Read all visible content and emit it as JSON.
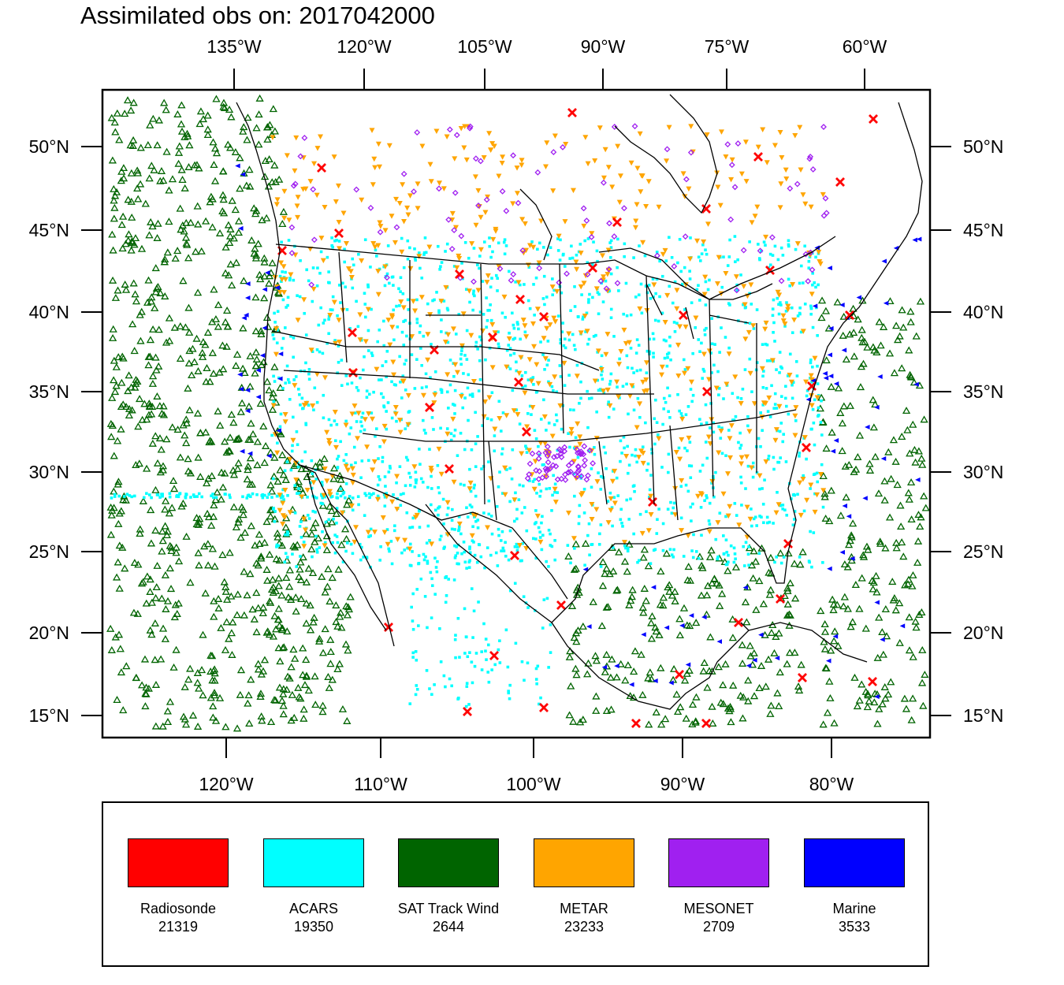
{
  "title": "Assimilated obs on: 2017042000",
  "top_axis_labels": [
    "135°W",
    "120°W",
    "105°W",
    "90°W",
    "75°W",
    "60°W"
  ],
  "bottom_axis_labels": [
    "120°W",
    "110°W",
    "100°W",
    "90°W",
    "80°W"
  ],
  "lat_labels": [
    "50°N",
    "45°N",
    "40°N",
    "35°N",
    "30°N",
    "25°N",
    "20°N",
    "15°N"
  ],
  "legend": [
    {
      "name": "Radiosonde",
      "count": "21319",
      "color": "#ff0000"
    },
    {
      "name": "ACARS",
      "count": "19350",
      "color": "#00ffff"
    },
    {
      "name": "SAT Track Wind",
      "count": "2644",
      "color": "#006400"
    },
    {
      "name": "METAR",
      "count": "23233",
      "color": "#ffa500"
    },
    {
      "name": "MESONET",
      "count": "2709",
      "color": "#a020f0"
    },
    {
      "name": "Marine",
      "count": "3533",
      "color": "#0000ff"
    }
  ]
}
